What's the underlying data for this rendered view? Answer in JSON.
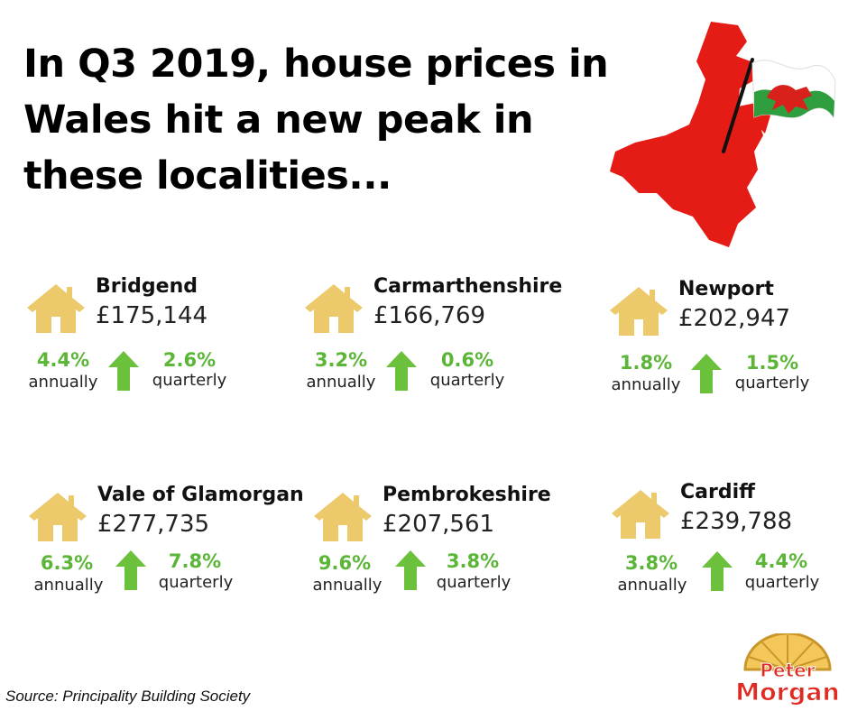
{
  "headline": "In Q3 2019, house prices in Wales hit a new peak in these localities...",
  "localities": [
    {
      "name": "Bridgend",
      "price": "£175,144",
      "annual": "4.4%",
      "quarterly": "2.6%"
    },
    {
      "name": "Carmarthenshire",
      "price": "£166,769",
      "annual": "3.2%",
      "quarterly": "0.6%"
    },
    {
      "name": "Newport",
      "price": "£202,947",
      "annual": "1.8%",
      "quarterly": "1.5%"
    },
    {
      "name": "Vale of Glamorgan",
      "price": "£277,735",
      "annual": "6.3%",
      "quarterly": "7.8%"
    },
    {
      "name": "Pembrokeshire",
      "price": "£207,561",
      "annual": "9.6%",
      "quarterly": "3.8%"
    },
    {
      "name": "Cardiff",
      "price": "£239,788",
      "annual": "3.8%",
      "quarterly": "4.4%"
    }
  ],
  "labels": {
    "annual": "annually",
    "quarterly": "quarterly"
  },
  "source": "Source: Principality Building Society",
  "logo": {
    "line1": "Peter",
    "line2": "Morgan"
  },
  "icons": {
    "house": "house-icon",
    "arrow": "arrow-up-icon",
    "map": "wales-map-with-flag"
  },
  "colors": {
    "house": "#ecc96b",
    "arrow": "#6cc13c",
    "percent": "#5bb637",
    "map": "#e51b16",
    "flag_green": "#2e9e3f"
  }
}
